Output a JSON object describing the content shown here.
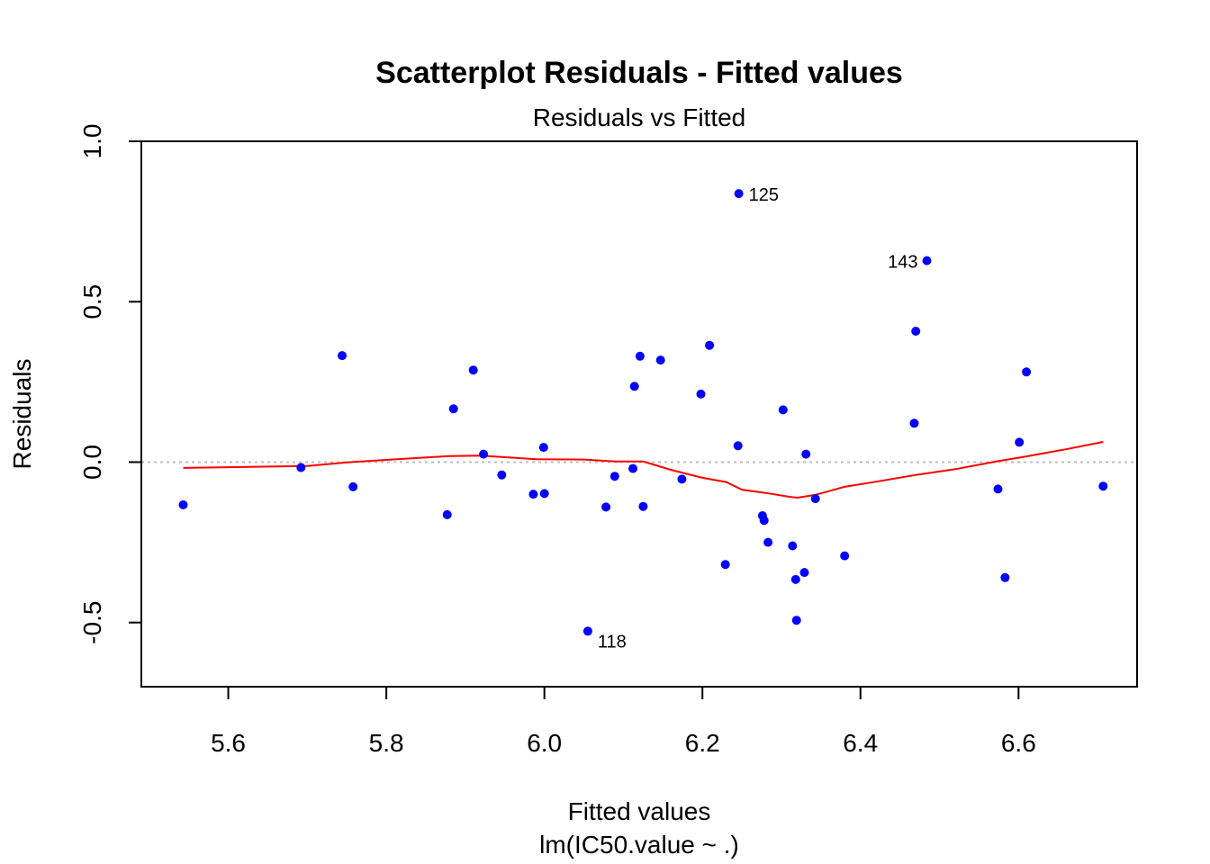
{
  "chart_data": {
    "type": "scatter",
    "title": "Scatterplot Residuals - Fitted values",
    "subtitle": "Residuals vs Fitted",
    "xlabel": "Fitted values",
    "xlabel2": "lm(IC50.value ~ .)",
    "ylabel": "Residuals",
    "xlim": [
      5.49,
      6.75
    ],
    "ylim": [
      -0.7,
      1.0
    ],
    "xticks": [
      {
        "value": 5.6,
        "label": "5.6"
      },
      {
        "value": 5.8,
        "label": "5.8"
      },
      {
        "value": 6.0,
        "label": "6.0"
      },
      {
        "value": 6.2,
        "label": "6.2"
      },
      {
        "value": 6.4,
        "label": "6.4"
      },
      {
        "value": 6.6,
        "label": "6.6"
      }
    ],
    "yticks": [
      {
        "value": -0.5,
        "label": "-0.5"
      },
      {
        "value": 0.0,
        "label": "0.0"
      },
      {
        "value": 0.5,
        "label": "0.5"
      },
      {
        "value": 1.0,
        "label": "1.0"
      }
    ],
    "point_color": "#0000ff",
    "smooth_color": "#ff0000",
    "zero_line_color": "#bebebe",
    "points": [
      {
        "x": 5.543,
        "y": -0.133
      },
      {
        "x": 5.692,
        "y": -0.017
      },
      {
        "x": 5.744,
        "y": 0.332
      },
      {
        "x": 5.758,
        "y": -0.077
      },
      {
        "x": 5.877,
        "y": -0.164
      },
      {
        "x": 5.885,
        "y": 0.166
      },
      {
        "x": 5.91,
        "y": 0.287
      },
      {
        "x": 5.923,
        "y": 0.025
      },
      {
        "x": 5.946,
        "y": -0.04
      },
      {
        "x": 5.986,
        "y": -0.1
      },
      {
        "x": 5.999,
        "y": 0.046
      },
      {
        "x": 6.0,
        "y": -0.098
      },
      {
        "x": 6.055,
        "y": -0.527,
        "label": "118"
      },
      {
        "x": 6.078,
        "y": -0.14
      },
      {
        "x": 6.089,
        "y": -0.044
      },
      {
        "x": 6.112,
        "y": -0.02
      },
      {
        "x": 6.114,
        "y": 0.236
      },
      {
        "x": 6.121,
        "y": 0.33
      },
      {
        "x": 6.125,
        "y": -0.138
      },
      {
        "x": 6.147,
        "y": 0.318
      },
      {
        "x": 6.174,
        "y": -0.053
      },
      {
        "x": 6.198,
        "y": 0.212
      },
      {
        "x": 6.209,
        "y": 0.364
      },
      {
        "x": 6.229,
        "y": -0.319
      },
      {
        "x": 6.245,
        "y": 0.051
      },
      {
        "x": 6.246,
        "y": 0.837,
        "label": "125"
      },
      {
        "x": 6.276,
        "y": -0.167
      },
      {
        "x": 6.278,
        "y": -0.182
      },
      {
        "x": 6.283,
        "y": -0.25
      },
      {
        "x": 6.302,
        "y": 0.163
      },
      {
        "x": 6.314,
        "y": -0.261
      },
      {
        "x": 6.318,
        "y": -0.366
      },
      {
        "x": 6.319,
        "y": -0.493
      },
      {
        "x": 6.329,
        "y": -0.344
      },
      {
        "x": 6.331,
        "y": 0.025
      },
      {
        "x": 6.343,
        "y": -0.114
      },
      {
        "x": 6.38,
        "y": -0.292
      },
      {
        "x": 6.468,
        "y": 0.121
      },
      {
        "x": 6.47,
        "y": 0.408
      },
      {
        "x": 6.484,
        "y": 0.628,
        "label": "143"
      },
      {
        "x": 6.574,
        "y": -0.084
      },
      {
        "x": 6.583,
        "y": -0.36
      },
      {
        "x": 6.601,
        "y": 0.062
      },
      {
        "x": 6.61,
        "y": 0.281
      },
      {
        "x": 6.707,
        "y": -0.075
      }
    ],
    "smooth": [
      {
        "x": 5.543,
        "y": -0.018
      },
      {
        "x": 5.7,
        "y": -0.012
      },
      {
        "x": 5.75,
        "y": -0.001
      },
      {
        "x": 5.82,
        "y": 0.01
      },
      {
        "x": 5.88,
        "y": 0.019
      },
      {
        "x": 5.92,
        "y": 0.02
      },
      {
        "x": 5.99,
        "y": 0.009
      },
      {
        "x": 6.05,
        "y": 0.008
      },
      {
        "x": 6.09,
        "y": 0.002
      },
      {
        "x": 6.125,
        "y": 0.002
      },
      {
        "x": 6.16,
        "y": -0.024
      },
      {
        "x": 6.2,
        "y": -0.049
      },
      {
        "x": 6.23,
        "y": -0.062
      },
      {
        "x": 6.25,
        "y": -0.086
      },
      {
        "x": 6.28,
        "y": -0.096
      },
      {
        "x": 6.31,
        "y": -0.108
      },
      {
        "x": 6.32,
        "y": -0.111
      },
      {
        "x": 6.343,
        "y": -0.102
      },
      {
        "x": 6.38,
        "y": -0.077
      },
      {
        "x": 6.42,
        "y": -0.061
      },
      {
        "x": 6.47,
        "y": -0.04
      },
      {
        "x": 6.52,
        "y": -0.022
      },
      {
        "x": 6.574,
        "y": 0.003
      },
      {
        "x": 6.61,
        "y": 0.018
      },
      {
        "x": 6.66,
        "y": 0.04
      },
      {
        "x": 6.707,
        "y": 0.063
      }
    ]
  }
}
